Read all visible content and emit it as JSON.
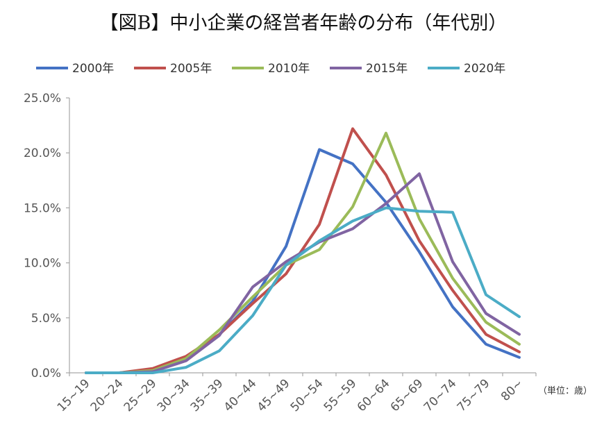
{
  "chart_data": {
    "type": "line",
    "title": "【図B】中小企業の経営者年齢の分布（年代別）",
    "unit_label": "（単位：歳）",
    "categories": [
      "15~19",
      "20~24",
      "25~29",
      "30~34",
      "35~39",
      "40~44",
      "45~49",
      "50~54",
      "55~59",
      "60~64",
      "65~69",
      "70~74",
      "75~79",
      "80~"
    ],
    "ylim": [
      0,
      25
    ],
    "yticks": [
      "0.0%",
      "5.0%",
      "10.0%",
      "15.0%",
      "20.0%",
      "25.0%"
    ],
    "ytick_values": [
      0,
      5,
      10,
      15,
      20,
      25
    ],
    "grid": false,
    "legend_position": "top",
    "series": [
      {
        "name": "2000年",
        "color": "#4472c4",
        "values": [
          0,
          0,
          0.3,
          1.3,
          3.5,
          6.5,
          11.5,
          20.3,
          19.0,
          15.5,
          11.0,
          6.0,
          2.6,
          1.4
        ]
      },
      {
        "name": "2005年",
        "color": "#c0504d",
        "values": [
          0,
          0,
          0.4,
          1.5,
          3.5,
          6.3,
          9.0,
          13.5,
          22.2,
          18.0,
          12.0,
          7.5,
          3.5,
          1.9
        ]
      },
      {
        "name": "2010年",
        "color": "#9bbb59",
        "values": [
          0,
          0,
          0.2,
          1.3,
          3.9,
          6.9,
          9.8,
          11.2,
          15.1,
          21.8,
          14.0,
          8.6,
          4.6,
          2.6
        ]
      },
      {
        "name": "2015年",
        "color": "#8064a2",
        "values": [
          0,
          0,
          0.1,
          1.1,
          3.4,
          7.8,
          10.1,
          11.9,
          13.1,
          15.4,
          18.1,
          10.1,
          5.4,
          3.5
        ]
      },
      {
        "name": "2020年",
        "color": "#4bacc6",
        "values": [
          0,
          0,
          0,
          0.5,
          2.0,
          5.2,
          9.8,
          12.0,
          13.8,
          15.0,
          14.7,
          14.6,
          7.1,
          5.1
        ]
      }
    ]
  }
}
